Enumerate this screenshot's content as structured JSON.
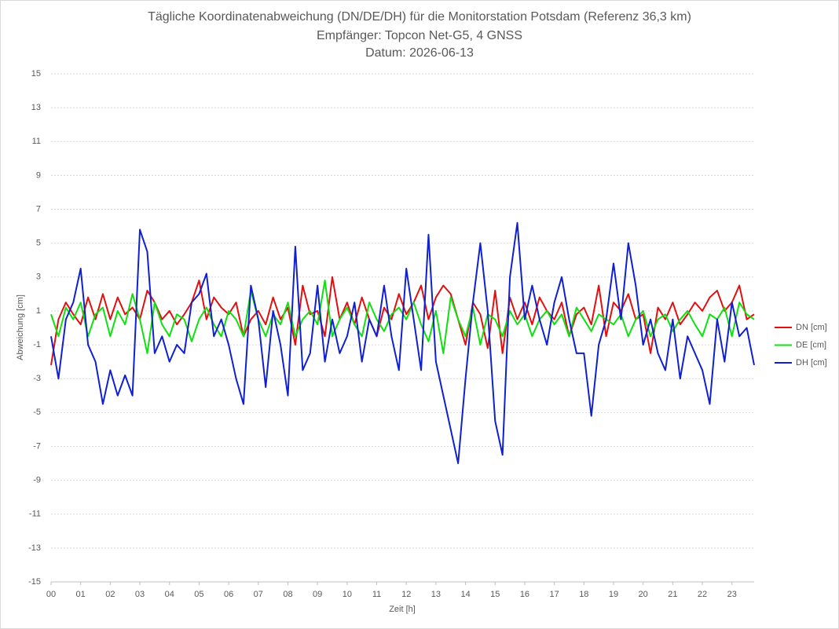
{
  "chart_data": {
    "type": "line",
    "title": "Tägliche Koordinatenabweichung (DN/DE/DH) für die Monitorstation Potsdam (Referenz 36,3 km)",
    "subtitle": "Empfänger: Topcon Net-G5, 4 GNSS",
    "date_label": "Datum: 2026-06-13",
    "x_label": "Zeit [h]",
    "y_label": "Abweichung [cm]",
    "xlim": [
      0,
      23.75
    ],
    "ylim": [
      -15,
      15
    ],
    "xticks": [
      {
        "value": 0,
        "label": "00"
      },
      {
        "value": 1,
        "label": "01"
      },
      {
        "value": 2,
        "label": "02"
      },
      {
        "value": 3,
        "label": "03"
      },
      {
        "value": 4,
        "label": "04"
      },
      {
        "value": 5,
        "label": "05"
      },
      {
        "value": 6,
        "label": "06"
      },
      {
        "value": 7,
        "label": "07"
      },
      {
        "value": 8,
        "label": "08"
      },
      {
        "value": 9,
        "label": "09"
      },
      {
        "value": 10,
        "label": "10"
      },
      {
        "value": 11,
        "label": "11"
      },
      {
        "value": 12,
        "label": "12"
      },
      {
        "value": 13,
        "label": "13"
      },
      {
        "value": 14,
        "label": "14"
      },
      {
        "value": 15,
        "label": "15"
      },
      {
        "value": 16,
        "label": "16"
      },
      {
        "value": 17,
        "label": "17"
      },
      {
        "value": 18,
        "label": "18"
      },
      {
        "value": 19,
        "label": "19"
      },
      {
        "value": 20,
        "label": "20"
      },
      {
        "value": 21,
        "label": "21"
      },
      {
        "value": 22,
        "label": "22"
      },
      {
        "value": 23,
        "label": "23"
      }
    ],
    "yticks": [
      -15,
      -13,
      -11,
      -9,
      -7,
      -5,
      -3,
      -1,
      1,
      3,
      5,
      7,
      9,
      11,
      13,
      15
    ],
    "grid": true,
    "legend": "right",
    "x": [
      0,
      0.25,
      0.5,
      0.75,
      1,
      1.25,
      1.5,
      1.75,
      2,
      2.25,
      2.5,
      2.75,
      3,
      3.25,
      3.5,
      3.75,
      4,
      4.25,
      4.5,
      4.75,
      5,
      5.25,
      5.5,
      5.75,
      6,
      6.25,
      6.5,
      6.75,
      7,
      7.25,
      7.5,
      7.75,
      8,
      8.25,
      8.5,
      8.75,
      9,
      9.25,
      9.5,
      9.75,
      10,
      10.25,
      10.5,
      10.75,
      11,
      11.25,
      11.5,
      11.75,
      12,
      12.25,
      12.5,
      12.75,
      13,
      13.25,
      13.5,
      13.75,
      14,
      14.25,
      14.5,
      14.75,
      15,
      15.25,
      15.5,
      15.75,
      16,
      16.25,
      16.5,
      16.75,
      17,
      17.25,
      17.5,
      17.75,
      18,
      18.25,
      18.5,
      18.75,
      19,
      19.25,
      19.5,
      19.75,
      20,
      20.25,
      20.5,
      20.75,
      21,
      21.25,
      21.5,
      21.75,
      22,
      22.25,
      22.5,
      22.75,
      23,
      23.25,
      23.5,
      23.75
    ],
    "series": [
      {
        "name": "DN [cm]",
        "color": "#e01010",
        "values": [
          -2.2,
          0.5,
          1.5,
          0.8,
          0.2,
          1.8,
          0.5,
          2.0,
          0.5,
          1.8,
          0.8,
          1.2,
          0.5,
          2.2,
          1.5,
          0.5,
          1.0,
          0.2,
          0.8,
          1.5,
          2.8,
          0.5,
          1.8,
          1.2,
          0.8,
          1.5,
          -0.5,
          0.5,
          1.0,
          0.2,
          1.8,
          0.5,
          1.2,
          -1.0,
          2.5,
          0.8,
          1.0,
          -0.5,
          3.0,
          0.5,
          1.5,
          0.2,
          1.8,
          0.5,
          -0.5,
          1.2,
          0.5,
          2.0,
          0.8,
          1.5,
          2.5,
          0.5,
          1.8,
          2.5,
          2.0,
          0.5,
          -1.0,
          1.5,
          0.8,
          -1.2,
          2.2,
          -1.5,
          1.8,
          0.5,
          1.5,
          0.2,
          1.8,
          1.0,
          0.5,
          1.5,
          -0.5,
          0.8,
          1.2,
          0.2,
          2.5,
          -0.5,
          1.5,
          1.0,
          2.0,
          0.5,
          0.8,
          -1.5,
          1.2,
          0.5,
          1.5,
          0.2,
          0.8,
          1.5,
          1.0,
          1.8,
          2.2,
          1.0,
          1.5,
          2.5,
          0.5,
          0.8
        ]
      },
      {
        "name": "DE [cm]",
        "color": "#10e010",
        "values": [
          0.8,
          -0.5,
          1.2,
          0.5,
          1.5,
          -0.5,
          0.8,
          1.2,
          -0.5,
          1.0,
          0.2,
          2.0,
          0.5,
          -1.5,
          1.5,
          0.2,
          -0.5,
          0.8,
          0.5,
          -0.8,
          0.5,
          1.2,
          0.2,
          -0.5,
          1.0,
          0.5,
          -0.5,
          2.2,
          0.5,
          -0.5,
          0.8,
          0.2,
          1.5,
          -0.5,
          0.5,
          1.0,
          0.2,
          2.8,
          -0.5,
          0.5,
          1.2,
          0.2,
          -0.5,
          1.5,
          0.5,
          -0.2,
          0.8,
          1.2,
          0.5,
          1.5,
          0.2,
          -0.8,
          1.0,
          -1.5,
          1.8,
          0.5,
          -0.5,
          1.2,
          -1.0,
          0.8,
          0.5,
          -0.5,
          1.0,
          0.2,
          0.8,
          -0.5,
          0.5,
          1.0,
          0.2,
          0.8,
          -0.5,
          1.2,
          0.5,
          -0.2,
          0.8,
          0.5,
          0.2,
          0.8,
          -0.5,
          0.5,
          1.0,
          -0.5,
          0.5,
          0.8,
          -0.2,
          0.5,
          1.0,
          0.2,
          -0.5,
          0.8,
          0.5,
          1.2,
          -0.5,
          1.5,
          0.8,
          0.5
        ]
      },
      {
        "name": "DH [cm]",
        "color": "#1020d0",
        "values": [
          -0.5,
          -3.0,
          0.5,
          1.5,
          3.5,
          -1.0,
          -2.0,
          -4.5,
          -2.5,
          -4.0,
          -2.8,
          -4.0,
          5.8,
          4.5,
          -1.5,
          -0.5,
          -2.0,
          -1.0,
          -1.5,
          1.5,
          2.0,
          3.2,
          -0.5,
          0.5,
          -1.0,
          -3.0,
          -4.5,
          2.5,
          0.5,
          -3.5,
          1.0,
          -1.0,
          -4.0,
          4.8,
          -2.5,
          -1.5,
          2.5,
          -2.0,
          0.5,
          -1.5,
          -0.5,
          1.5,
          -2.0,
          0.5,
          -0.5,
          2.5,
          -0.5,
          -2.5,
          3.5,
          0.5,
          -2.5,
          5.5,
          -2.0,
          -4.0,
          -6.0,
          -8.0,
          -3.0,
          1.5,
          5.0,
          1.0,
          -5.5,
          -7.5,
          3.0,
          6.2,
          0.5,
          2.5,
          0.5,
          -1.0,
          1.5,
          3.0,
          0.5,
          -1.5,
          -1.5,
          -5.2,
          -1.0,
          0.5,
          3.8,
          0.5,
          5.0,
          2.5,
          -1.0,
          0.5,
          -1.5,
          -2.5,
          0.5,
          -3.0,
          -0.5,
          -1.5,
          -2.5,
          -4.5,
          0.5,
          -2.0,
          1.5,
          -0.5,
          0.0,
          -2.2
        ]
      }
    ]
  }
}
